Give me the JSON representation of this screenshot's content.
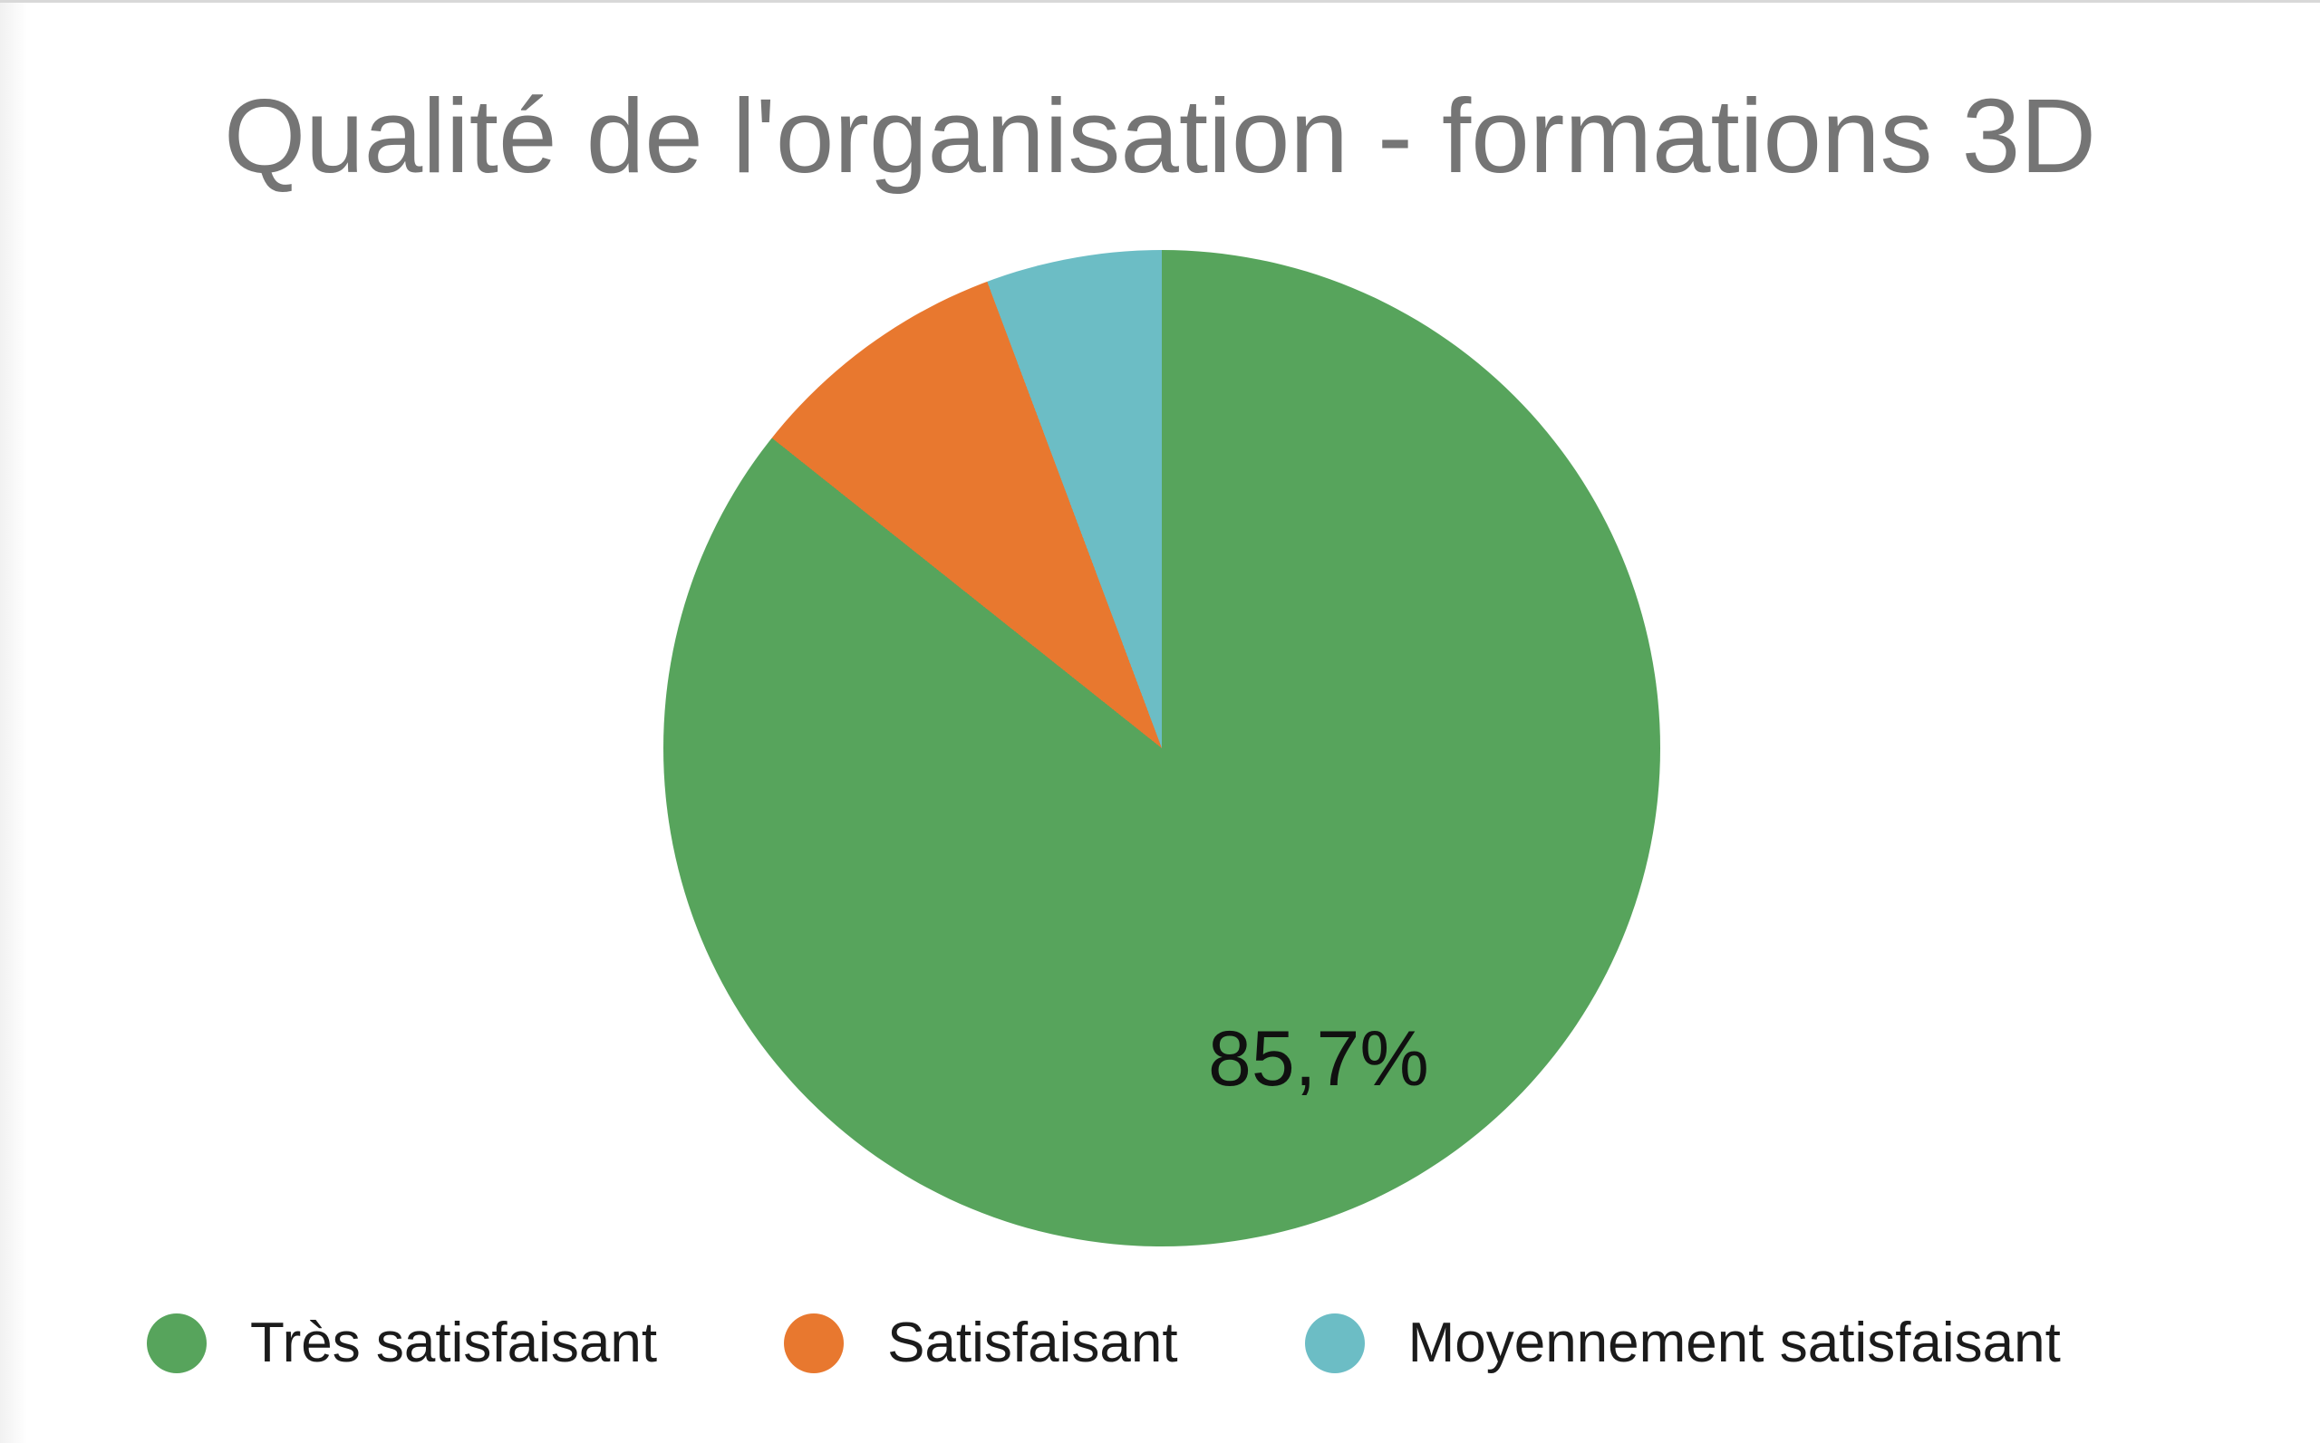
{
  "page": {
    "background_color": "#ffffff",
    "top_border_color": "#d8d8d8"
  },
  "chart_data": {
    "type": "pie",
    "title": "Qualité de l'organisation - formations 3D",
    "title_color": "#757575",
    "legend_position": "bottom-left",
    "start_angle_deg": 0,
    "direction": "clockwise",
    "categories": [
      "Très satisfaisant",
      "Satisfaisant",
      "Moyennement satisfaisant"
    ],
    "values": [
      85.7,
      8.6,
      5.7
    ],
    "slices": [
      {
        "label": "Très satisfaisant",
        "percent": 85.7,
        "display_label": "85,7%",
        "color": "#57A45C"
      },
      {
        "label": "Satisfaisant",
        "percent": 8.6,
        "display_label": "",
        "color": "#E8782F"
      },
      {
        "label": "Moyennement satisfaisant",
        "percent": 5.7,
        "display_label": "",
        "color": "#6CBDC5"
      }
    ],
    "value_label_color": "#101010",
    "legend_text_color": "#1b1b1b"
  }
}
